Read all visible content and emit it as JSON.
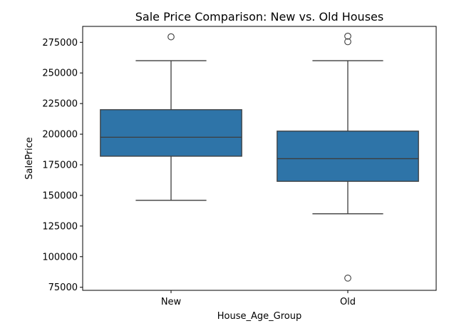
{
  "chart_data": {
    "type": "box",
    "title": "Sale Price Comparison: New vs. Old Houses",
    "xlabel": "House_Age_Group",
    "ylabel": "SalePrice",
    "ylim": [
      72500,
      288000
    ],
    "yticks": [
      75000,
      100000,
      125000,
      150000,
      175000,
      200000,
      225000,
      250000,
      275000
    ],
    "ytick_labels": [
      "75000",
      "100000",
      "125000",
      "150000",
      "175000",
      "200000",
      "225000",
      "250000",
      "275000"
    ],
    "categories": [
      "New",
      "Old"
    ],
    "box_color": "#2e74a8",
    "boxes": [
      {
        "category": "New",
        "whisker_low": 146000,
        "q1": 182000,
        "median": 197500,
        "q3": 220000,
        "whisker_high": 260000,
        "outliers": [
          279500
        ]
      },
      {
        "category": "Old",
        "whisker_low": 135000,
        "q1": 161500,
        "median": 180000,
        "q3": 202500,
        "whisker_high": 260000,
        "outliers": [
          82500,
          275500,
          280000
        ]
      }
    ]
  }
}
